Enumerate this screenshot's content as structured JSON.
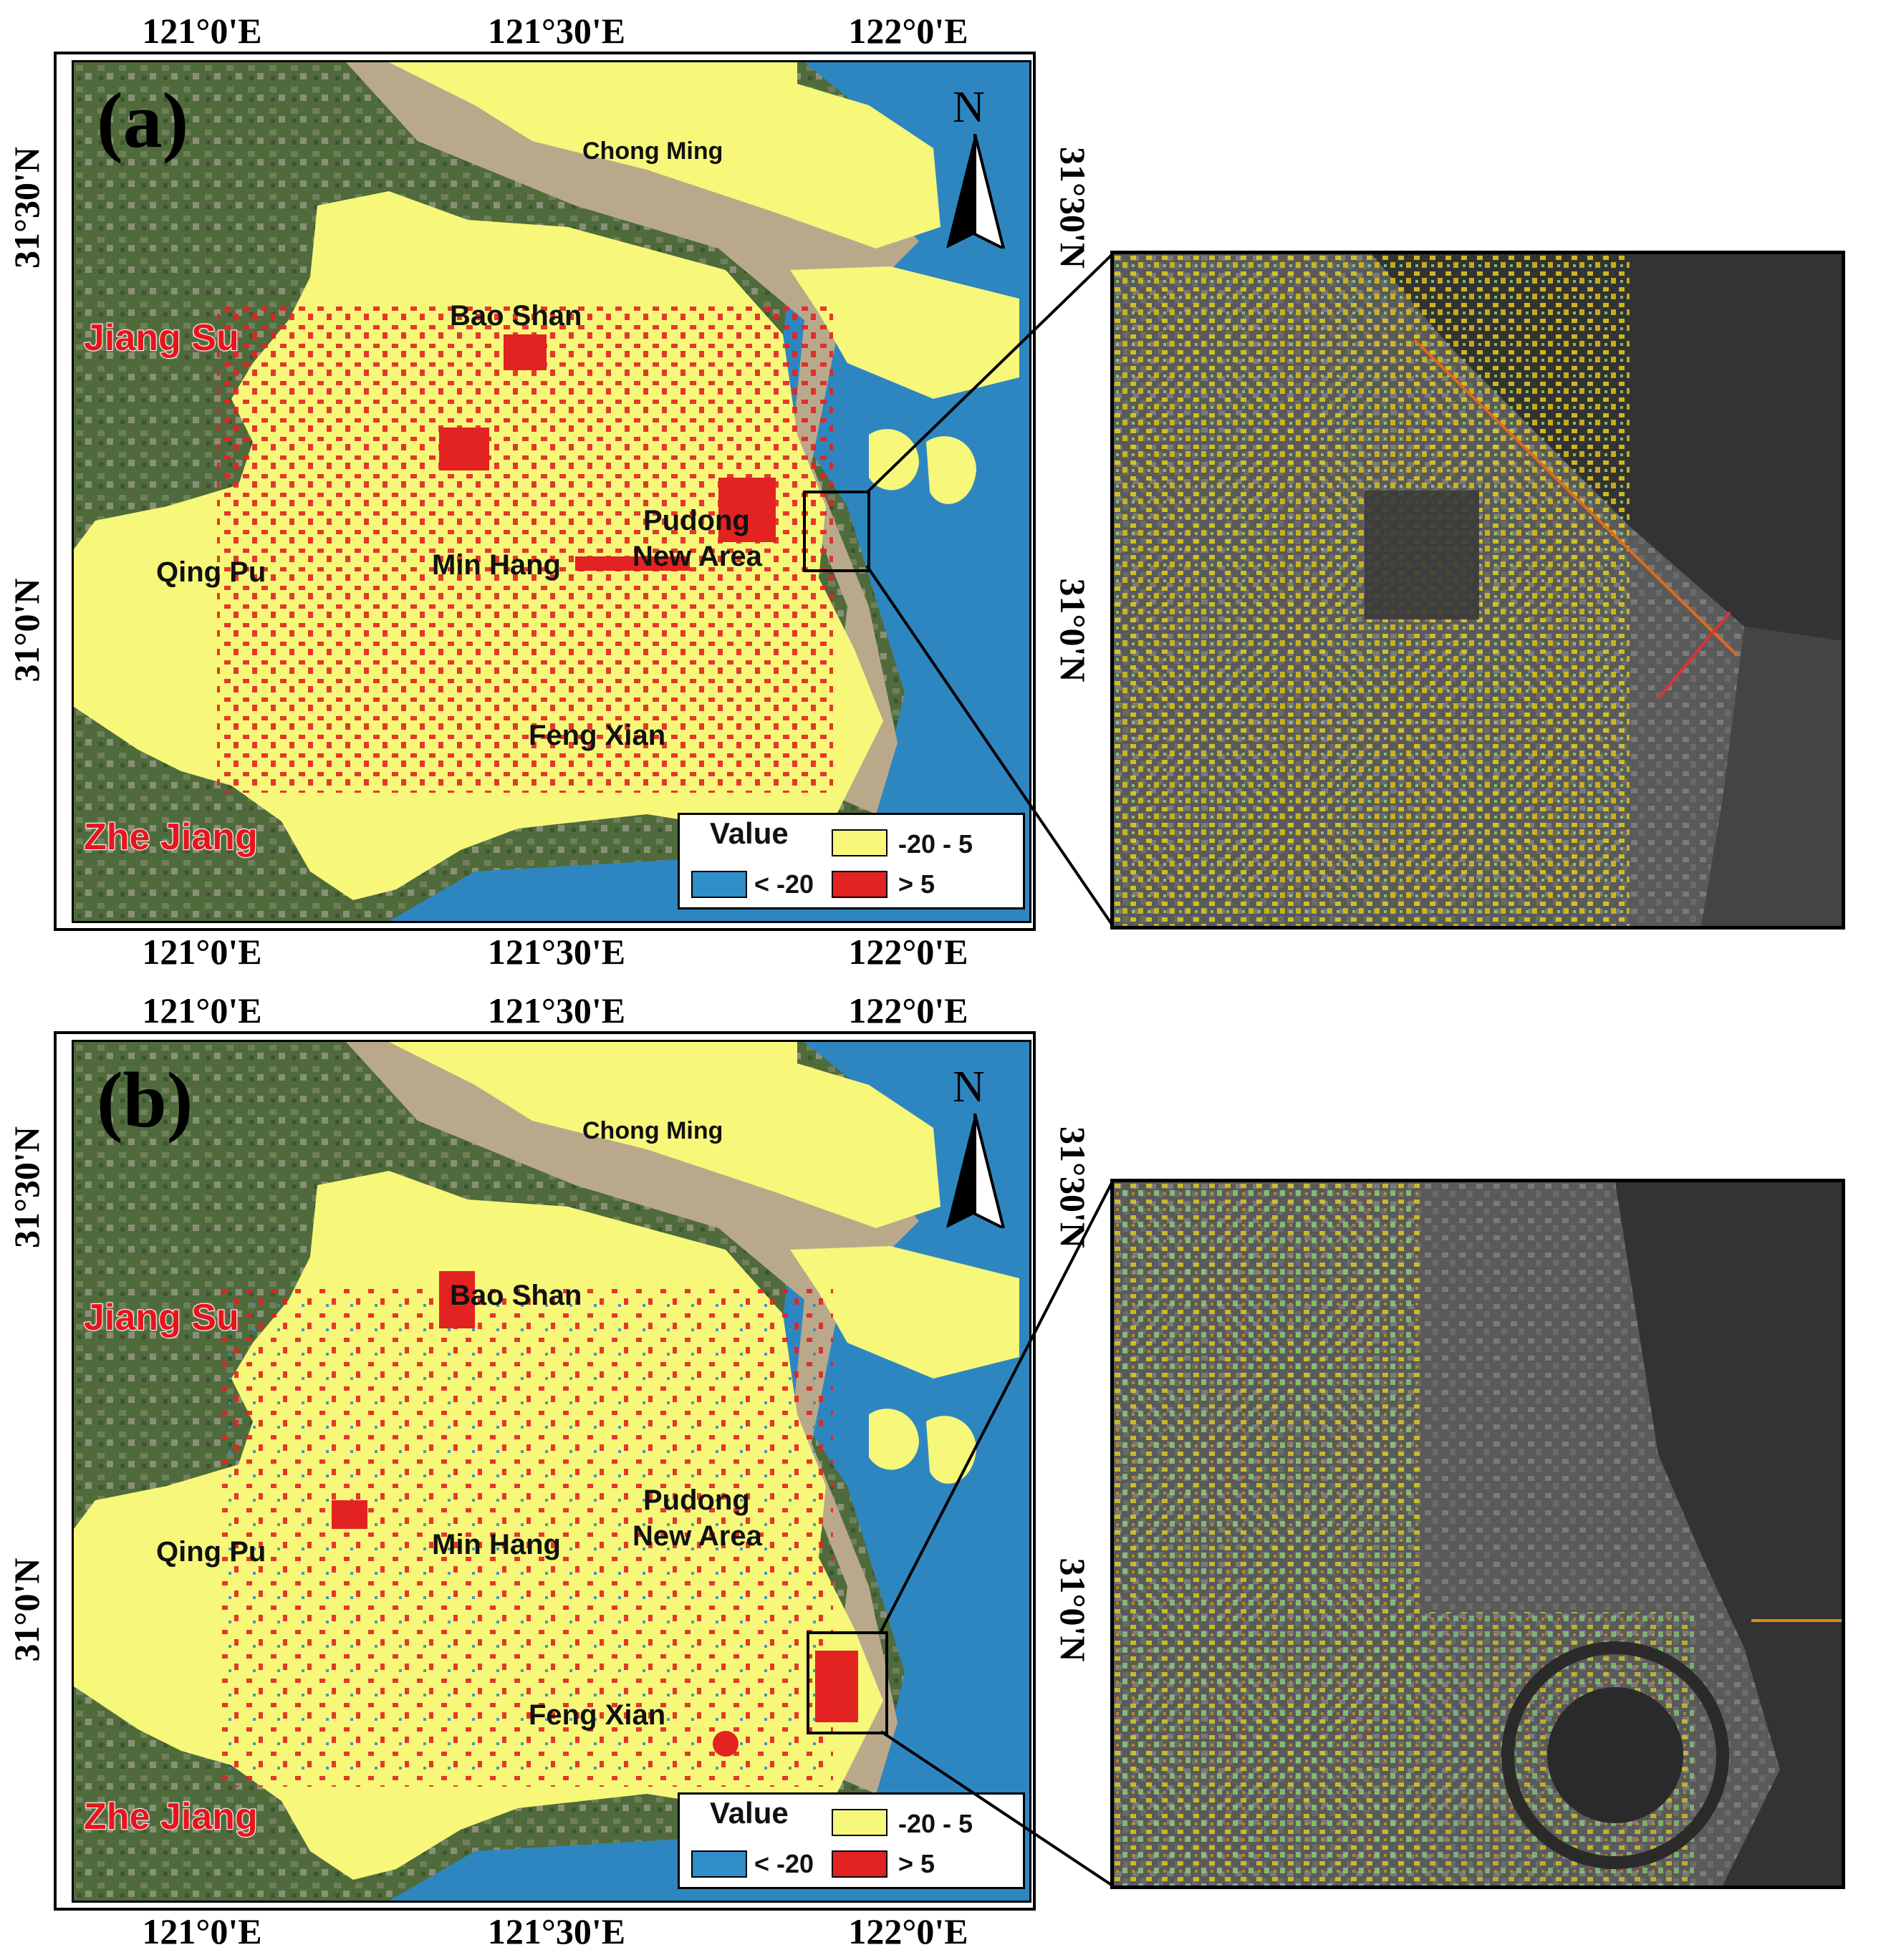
{
  "panels": [
    {
      "letter": "(a)",
      "top_ticks": [
        "121°0'E",
        "121°30'E",
        "122°0'E"
      ],
      "bottom_ticks": [
        "121°0'E",
        "121°30'E",
        "122°0'E"
      ],
      "left_ticks": [
        "31°30'N",
        "31°0'N"
      ],
      "right_ticks": [
        "31°30'N",
        "31°0'N"
      ],
      "north": "N",
      "places": {
        "chong_ming": "Chong Ming",
        "bao_shan": "Bao Shan",
        "qing_pu": "Qing Pu",
        "min_hang": "Min Hang",
        "pudong_1": "Pudong",
        "pudong_2": "New Area",
        "feng_xian": "Feng Xian"
      },
      "provinces": {
        "jiang_su": "Jiang Su",
        "zhe_jiang": "Zhe Jiang"
      },
      "legend": {
        "title": "Value",
        "items": [
          "-20 - 5",
          "< -20",
          "> 5"
        ]
      }
    },
    {
      "letter": "(b)",
      "top_ticks": [
        "121°0'E",
        "121°30'E",
        "122°0'E"
      ],
      "bottom_ticks": [
        "121°0'E",
        "121°30'E",
        "122°0'E"
      ],
      "left_ticks": [
        "31°30'N",
        "31°0'N"
      ],
      "right_ticks": [
        "31°30'N",
        "31°0'N"
      ],
      "north": "N",
      "places": {
        "chong_ming": "Chong Ming",
        "bao_shan": "Bao Shan",
        "qing_pu": "Qing Pu",
        "min_hang": "Min Hang",
        "pudong_1": "Pudong",
        "pudong_2": "New Area",
        "feng_xian": "Feng Xian"
      },
      "provinces": {
        "jiang_su": "Jiang Su",
        "zhe_jiang": "Zhe Jiang"
      },
      "legend": {
        "title": "Value",
        "items": [
          "-20 - 5",
          "< -20",
          "> 5"
        ]
      }
    }
  ],
  "colors": {
    "mid_range": "#f7f77a",
    "low": "#2f8fc8",
    "high": "#e32222",
    "water": "#2e86c1",
    "river": "#b9a98a",
    "land": "#4f6b3c"
  }
}
